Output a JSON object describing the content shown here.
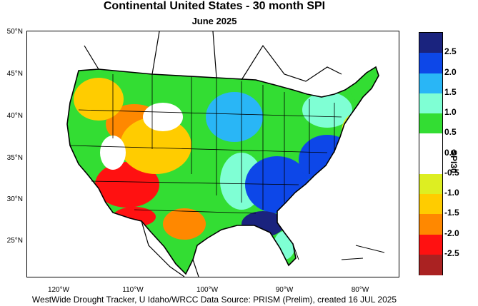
{
  "title": "Continental United States - 30 month SPI",
  "subtitle": "June 2025",
  "footer": "WestWide Drought Tracker, U Idaho/WRCC Data Source: PRISM (Prelim), created 16 JUL 2025",
  "map": {
    "variable": "SPI30",
    "lat_labels": [
      "50°N",
      "45°N",
      "40°N",
      "35°N",
      "30°N",
      "25°N"
    ],
    "lon_labels": [
      "120°W",
      "110°W",
      "100°W",
      "90°W",
      "80°W"
    ]
  },
  "legend": {
    "title": "SPI30",
    "labels": [
      "2.5",
      "2.0",
      "1.5",
      "1.0",
      "0.5",
      "0.0",
      "-0.5",
      "-1.0",
      "-1.5",
      "-2.0",
      "-2.5"
    ],
    "colors": [
      "#1a237e",
      "#0d47e8",
      "#29b6f6",
      "#7fffd4",
      "#33dd33",
      "#ffffff",
      "#ffffff",
      "#ddee22",
      "#ffcc00",
      "#ff8800",
      "#ff1111",
      "#aa2222"
    ]
  }
}
